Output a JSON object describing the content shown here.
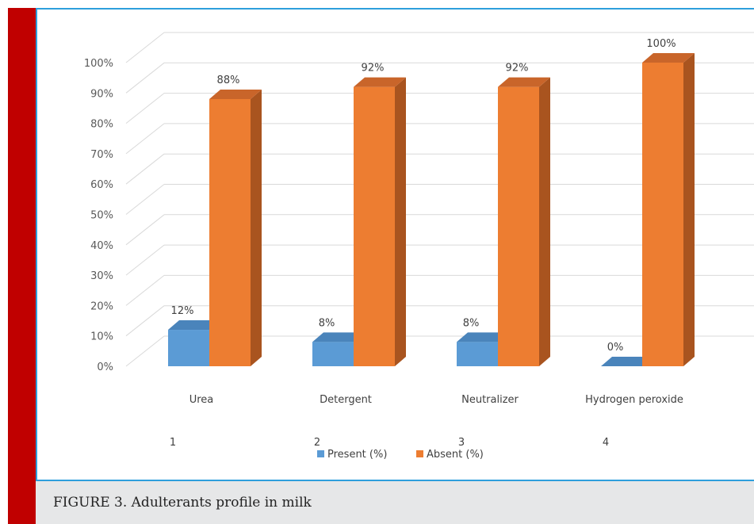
{
  "caption": "FIGURE 3. Adulterants profile in milk",
  "colors": {
    "present_front": "#5b9bd5",
    "present_side": "#41719c",
    "present_top": "#4a84bb",
    "absent_front": "#ed7d31",
    "absent_side": "#a9541f",
    "absent_top": "#c9652a",
    "frame": "#2e9fdc",
    "side_bar": "#c00000"
  },
  "chart_data": {
    "type": "bar",
    "categories": [
      "Urea",
      "Detergent",
      "Neutralizer",
      "Hydrogen peroxide"
    ],
    "category_numbers": [
      "1",
      "2",
      "3",
      "4"
    ],
    "series": [
      {
        "name": "Present (%)",
        "values": [
          12,
          8,
          8,
          0
        ],
        "labels": [
          "12%",
          "8%",
          "8%",
          "0%"
        ]
      },
      {
        "name": "Absent (%)",
        "values": [
          88,
          92,
          92,
          100
        ],
        "labels": [
          "88%",
          "92%",
          "92%",
          "100%"
        ]
      }
    ],
    "y_ticks": [
      "0%",
      "10%",
      "20%",
      "30%",
      "40%",
      "50%",
      "60%",
      "70%",
      "80%",
      "90%",
      "100%"
    ],
    "ylim": [
      0,
      100
    ],
    "grid": true,
    "legend_position": "bottom",
    "style": "3d-clustered-column"
  }
}
